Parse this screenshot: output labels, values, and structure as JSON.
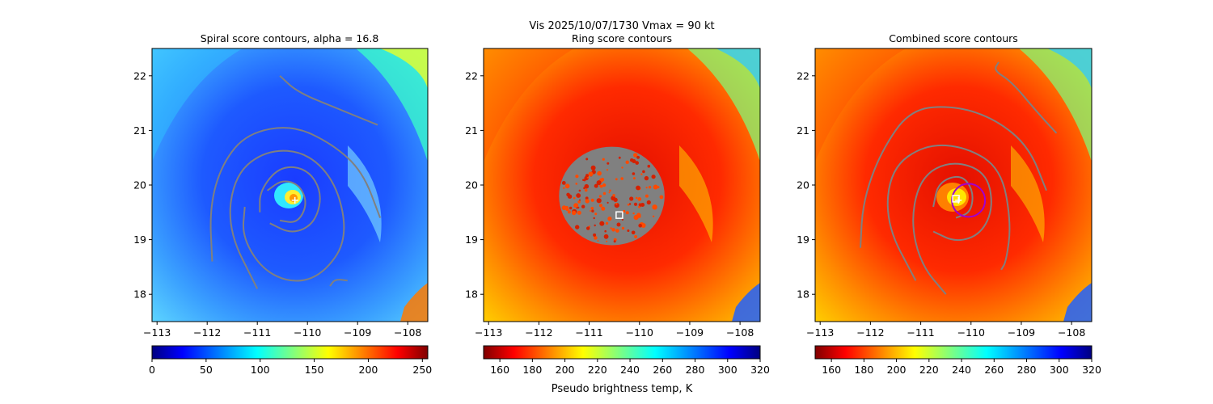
{
  "suptitle": "Vis  2025/10/07/1730    Vmax = 90 kt",
  "colorbar_label": "Pseudo brightness temp, K",
  "chart_data": [
    {
      "type": "heatmap",
      "title": "Spiral score contours, alpha = 16.8",
      "xlim": [
        -113.1,
        -107.6
      ],
      "ylim": [
        17.5,
        22.5
      ],
      "xticks": [
        -113,
        -112,
        -111,
        -110,
        -109,
        -108
      ],
      "xtick_labels": [
        "−113",
        "−112",
        "−111",
        "−110",
        "−109",
        "−108"
      ],
      "yticks": [
        18,
        19,
        20,
        21,
        22
      ],
      "ytick_labels": [
        "18",
        "19",
        "20",
        "21",
        "22"
      ],
      "colormap": "jet_r",
      "field": "pseudo brightness temp",
      "eye": {
        "lon": -110.25,
        "lat": 19.72,
        "marker": "+"
      },
      "contour_color": "#808080",
      "colorbar": {
        "range": [
          0,
          255
        ],
        "ticks": [
          0,
          50,
          100,
          150,
          200,
          250
        ],
        "tick_labels": [
          "0",
          "50",
          "100",
          "150",
          "200",
          "250"
        ]
      },
      "contours": [
        [
          [
            -110.55,
            22.0
          ],
          [
            -110.2,
            21.7
          ],
          [
            -109.4,
            21.4
          ],
          [
            -108.6,
            21.1
          ]
        ],
        [
          [
            -111.9,
            18.6
          ],
          [
            -111.95,
            19.6
          ],
          [
            -111.7,
            20.4
          ],
          [
            -111.2,
            20.95
          ],
          [
            -110.3,
            21.1
          ],
          [
            -109.5,
            20.75
          ],
          [
            -108.9,
            20.25
          ],
          [
            -108.55,
            19.4
          ]
        ],
        [
          [
            -111.0,
            18.1
          ],
          [
            -111.6,
            19.2
          ],
          [
            -111.45,
            20.2
          ],
          [
            -110.8,
            20.65
          ],
          [
            -110.0,
            20.6
          ],
          [
            -109.4,
            20.0
          ],
          [
            -109.2,
            19.0
          ],
          [
            -109.7,
            18.35
          ],
          [
            -110.3,
            18.2
          ],
          [
            -110.9,
            18.45
          ],
          [
            -111.3,
            19.05
          ],
          [
            -111.25,
            19.6
          ]
        ],
        [
          [
            -110.95,
            19.5
          ],
          [
            -110.95,
            19.9
          ],
          [
            -110.55,
            20.35
          ],
          [
            -110.0,
            20.3
          ],
          [
            -109.7,
            19.85
          ],
          [
            -109.85,
            19.3
          ],
          [
            -110.3,
            19.1
          ],
          [
            -110.75,
            19.3
          ]
        ],
        [
          [
            -110.8,
            19.9
          ],
          [
            -110.5,
            20.1
          ],
          [
            -110.15,
            20.0
          ],
          [
            -110.0,
            19.65
          ],
          [
            -110.2,
            19.3
          ],
          [
            -110.55,
            19.35
          ]
        ],
        [
          [
            -109.55,
            18.15
          ],
          [
            -109.45,
            18.28
          ],
          [
            -109.2,
            18.25
          ]
        ]
      ]
    },
    {
      "type": "heatmap",
      "title": "Ring score contours",
      "xlim": [
        -113.1,
        -107.6
      ],
      "ylim": [
        17.5,
        22.5
      ],
      "xticks": [
        -113,
        -112,
        -111,
        -110,
        -109,
        -108
      ],
      "xtick_labels": [
        "−113",
        "−112",
        "−111",
        "−110",
        "−109",
        "−108"
      ],
      "yticks": [
        18,
        19,
        20,
        21,
        22
      ],
      "ytick_labels": [
        "18",
        "19",
        "20",
        "21",
        "22"
      ],
      "colormap": "jet",
      "field": "pseudo brightness temp",
      "center_box": {
        "lon": -110.4,
        "lat": 19.45
      },
      "ring_region": {
        "lon": -110.55,
        "lat": 19.8,
        "radius_deg": 1.0,
        "color": "#808080"
      },
      "colorbar": {
        "range": [
          150,
          320
        ],
        "ticks": [
          160,
          180,
          200,
          220,
          240,
          260,
          280,
          300,
          320
        ],
        "tick_labels": [
          "160",
          "180",
          "200",
          "220",
          "240",
          "260",
          "280",
          "300",
          "320"
        ]
      },
      "contours": []
    },
    {
      "type": "heatmap",
      "title": "Combined score contours",
      "xlim": [
        -113.1,
        -107.6
      ],
      "ylim": [
        17.5,
        22.5
      ],
      "xticks": [
        -113,
        -112,
        -111,
        -110,
        -109,
        -108
      ],
      "xtick_labels": [
        "−113",
        "−112",
        "−111",
        "−110",
        "−109",
        "−108"
      ],
      "yticks": [
        18,
        19,
        20,
        21,
        22
      ],
      "ytick_labels": [
        "18",
        "19",
        "20",
        "21",
        "22"
      ],
      "colormap": "jet",
      "field": "pseudo brightness temp",
      "eye": {
        "lon": -110.25,
        "lat": 19.72,
        "marker": "+"
      },
      "center_box": {
        "lon": -110.3,
        "lat": 19.75
      },
      "best_circle": {
        "lon": -110.05,
        "lat": 19.72,
        "radius_deg": 0.33,
        "color": "#a000d0"
      },
      "contour_color": "#808080",
      "colorbar": {
        "range": [
          150,
          320
        ],
        "ticks": [
          160,
          180,
          200,
          220,
          240,
          260,
          280,
          300,
          320
        ],
        "tick_labels": [
          "160",
          "180",
          "200",
          "220",
          "240",
          "260",
          "280",
          "300",
          "320"
        ]
      },
      "contours": [
        [
          [
            -109.45,
            22.25
          ],
          [
            -109.55,
            22.1
          ],
          [
            -109.2,
            21.9
          ],
          [
            -108.7,
            21.35
          ],
          [
            -108.3,
            20.95
          ]
        ],
        [
          [
            -112.2,
            18.85
          ],
          [
            -112.15,
            19.7
          ],
          [
            -111.8,
            20.6
          ],
          [
            -111.2,
            21.4
          ],
          [
            -110.3,
            21.45
          ],
          [
            -109.5,
            21.2
          ],
          [
            -108.85,
            20.7
          ],
          [
            -108.5,
            19.9
          ]
        ],
        [
          [
            -111.1,
            18.25
          ],
          [
            -111.7,
            19.3
          ],
          [
            -111.6,
            20.3
          ],
          [
            -110.9,
            20.75
          ],
          [
            -110.1,
            20.7
          ],
          [
            -109.4,
            20.3
          ],
          [
            -109.2,
            19.3
          ],
          [
            -109.3,
            18.6
          ],
          [
            -109.4,
            18.45
          ]
        ],
        [
          [
            -110.5,
            18.0
          ],
          [
            -111.0,
            18.55
          ],
          [
            -111.2,
            19.35
          ],
          [
            -111.0,
            20.15
          ],
          [
            -110.4,
            20.45
          ],
          [
            -109.7,
            20.25
          ],
          [
            -109.55,
            19.6
          ],
          [
            -109.8,
            19.1
          ],
          [
            -110.3,
            18.95
          ],
          [
            -110.75,
            19.15
          ]
        ],
        [
          [
            -110.75,
            19.6
          ],
          [
            -110.65,
            20.05
          ],
          [
            -110.2,
            20.2
          ],
          [
            -109.95,
            19.9
          ],
          [
            -110.0,
            19.5
          ],
          [
            -110.3,
            19.4
          ]
        ]
      ]
    }
  ]
}
